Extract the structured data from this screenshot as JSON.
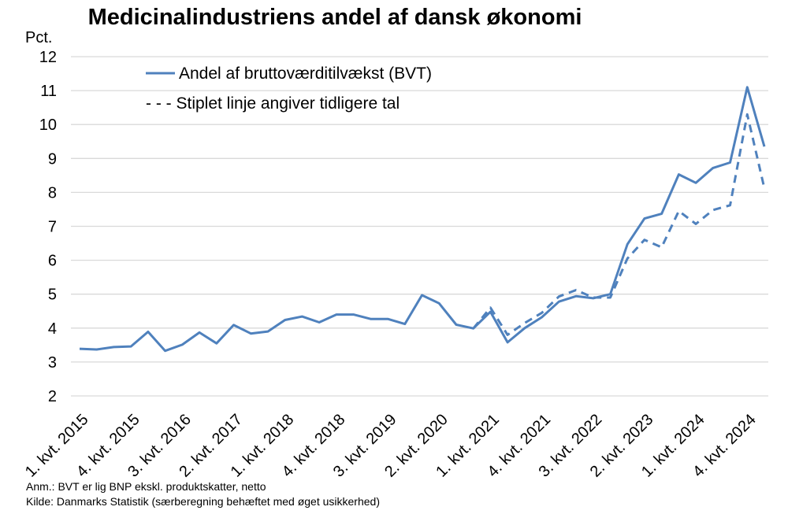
{
  "chart_data": {
    "type": "line",
    "title": "Medicinalindustriens andel af dansk økonomi",
    "ylabel": "Pct.",
    "ylim": [
      2,
      12
    ],
    "yticks": [
      2,
      3,
      4,
      5,
      6,
      7,
      8,
      9,
      10,
      11,
      12
    ],
    "grid": true,
    "legend_position": "top-left",
    "tick_labels": [
      "1. kvt. 2015",
      "4. kvt. 2015",
      "3. kvt. 2016",
      "2. kvt. 2017",
      "1. kvt. 2018",
      "4. kvt. 2018",
      "3. kvt. 2019",
      "2. kvt. 2020",
      "1. kvt. 2021",
      "4. kvt. 2021",
      "3. kvt. 2022",
      "2. kvt. 2023",
      "1. kvt. 2024",
      "4. kvt. 2024"
    ],
    "tick_every": 3,
    "categories": [
      "1. kvt. 2015",
      "2. kvt. 2015",
      "3. kvt. 2015",
      "4. kvt. 2015",
      "1. kvt. 2016",
      "2. kvt. 2016",
      "3. kvt. 2016",
      "4. kvt. 2016",
      "1. kvt. 2017",
      "2. kvt. 2017",
      "3. kvt. 2017",
      "4. kvt. 2017",
      "1. kvt. 2018",
      "2. kvt. 2018",
      "3. kvt. 2018",
      "4. kvt. 2018",
      "1. kvt. 2019",
      "2. kvt. 2019",
      "3. kvt. 2019",
      "4. kvt. 2019",
      "1. kvt. 2020",
      "2. kvt. 2020",
      "3. kvt. 2020",
      "4. kvt. 2020",
      "1. kvt. 2021",
      "2. kvt. 2021",
      "3. kvt. 2021",
      "4. kvt. 2021",
      "1. kvt. 2022",
      "2. kvt. 2022",
      "3. kvt. 2022",
      "4. kvt. 2022",
      "1. kvt. 2023",
      "2. kvt. 2023",
      "3. kvt. 2023",
      "4. kvt. 2023",
      "1. kvt. 2024",
      "2. kvt. 2024",
      "3. kvt. 2024",
      "4. kvt. 2024",
      "1. kvt. 2025"
    ],
    "series": [
      {
        "name": "Andel af bruttoværditilvækst (BVT)",
        "style": "solid",
        "color": "#4F81BD",
        "values": [
          3.39,
          3.37,
          3.44,
          3.46,
          3.89,
          3.33,
          3.51,
          3.87,
          3.55,
          4.09,
          3.84,
          3.9,
          4.24,
          4.34,
          4.17,
          4.4,
          4.4,
          4.27,
          4.27,
          4.12,
          4.97,
          4.73,
          4.1,
          3.99,
          4.48,
          3.58,
          4.0,
          4.32,
          4.78,
          4.94,
          4.88,
          5.0,
          6.47,
          7.23,
          7.37,
          8.53,
          8.28,
          8.72,
          8.88,
          11.1,
          9.35
        ]
      },
      {
        "name": "Stiplet linje angiver tidligere tal",
        "style": "dashed",
        "color": "#4F81BD",
        "values": [
          null,
          null,
          null,
          null,
          null,
          null,
          null,
          null,
          null,
          null,
          null,
          null,
          null,
          null,
          null,
          null,
          null,
          null,
          null,
          null,
          null,
          null,
          null,
          3.99,
          4.6,
          3.8,
          4.15,
          4.45,
          4.93,
          5.12,
          4.9,
          4.9,
          6.05,
          6.6,
          6.38,
          7.45,
          7.07,
          7.48,
          7.62,
          10.3,
          8.12
        ]
      }
    ],
    "legend": [
      {
        "label": "Andel af bruttoværditilvækst (BVT)",
        "marker": "solid"
      },
      {
        "label": "- - - Stiplet linje angiver tidligere tal",
        "marker": "none"
      }
    ]
  },
  "notes": {
    "anm": "Anm.: BVT er lig BNP ekskl. produktskatter, netto",
    "kilde": "Kilde: Danmarks Statistik (særberegning behæftet med øget usikkerhed)"
  }
}
